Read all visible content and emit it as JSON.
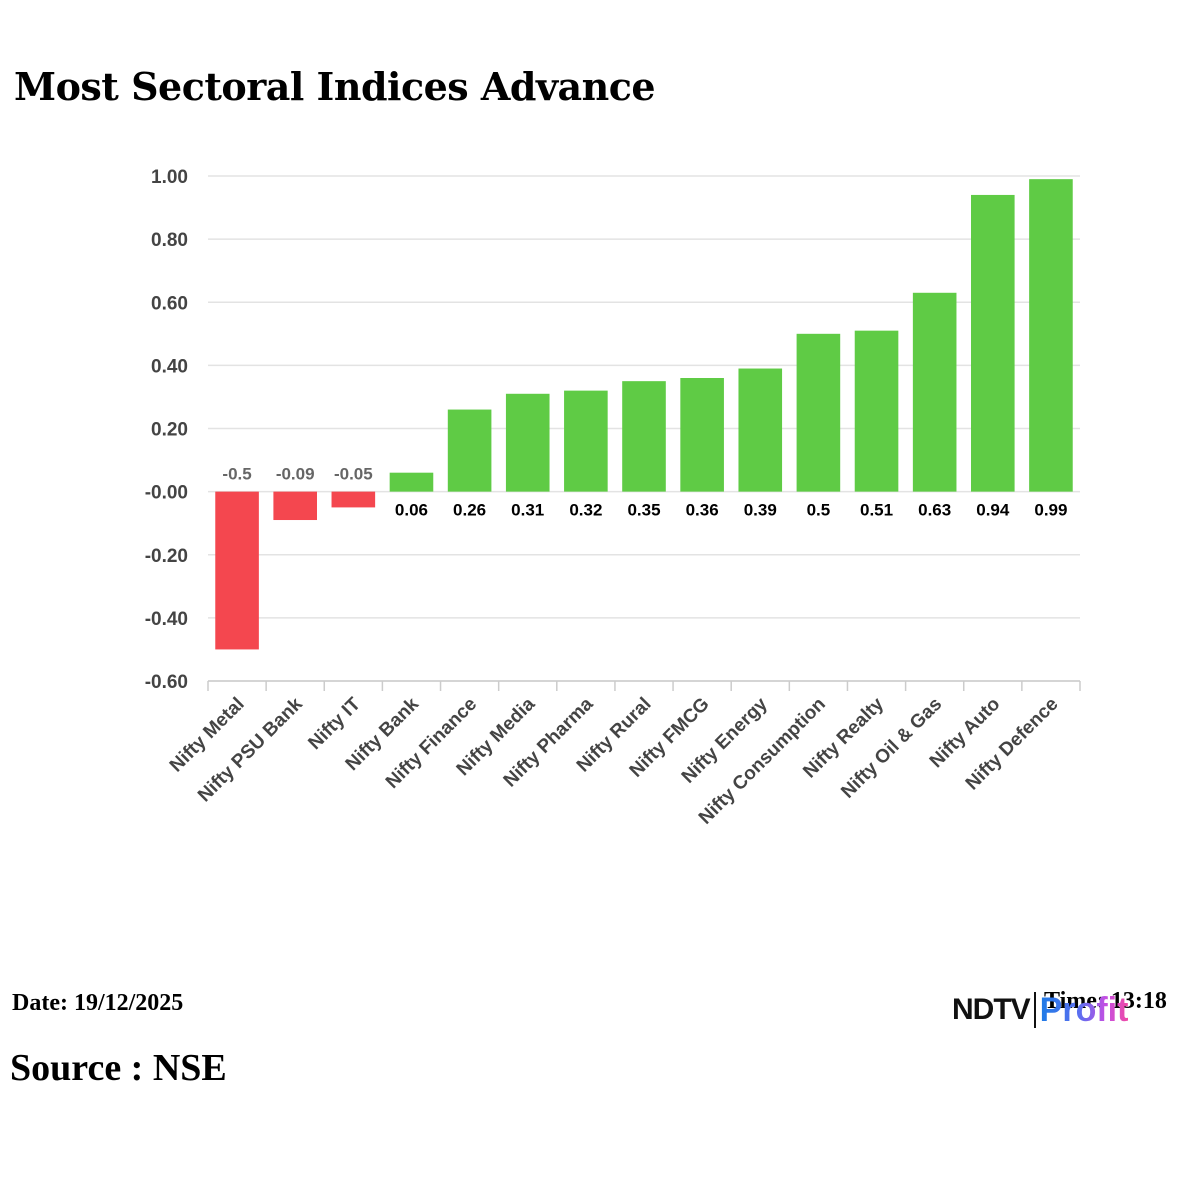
{
  "title": "Most Sectoral Indices Advance",
  "footer": {
    "date": "Date: 19/12/2025",
    "source": "Source : NSE",
    "time": "Time: 13:18"
  },
  "logo": {
    "text_primary": "NDTV",
    "text_secondary": "Profit"
  },
  "colors": {
    "positive": "#5fcb45",
    "negative": "#f4474f",
    "positive_label": "#000000",
    "negative_label": "#666666",
    "grid": "#e3e3e3",
    "axis": "#cccccc"
  },
  "chart_data": {
    "type": "bar",
    "title": "Most Sectoral Indices Advance",
    "xlabel": "",
    "ylabel": "",
    "categories": [
      "Nifty Metal",
      "Nifty PSU Bank",
      "Nifty IT",
      "Nifty Bank",
      "Nifty Finance",
      "Nifty Media",
      "Nifty Pharma",
      "Nifty Rural",
      "Nifty FMCG",
      "Nifty Energy",
      "Nifty Consumption",
      "Nifty Realty",
      "Nifty Oil & Gas",
      "Nifty Auto",
      "Nifty Defence"
    ],
    "values": [
      -0.5,
      -0.09,
      -0.05,
      0.06,
      0.26,
      0.31,
      0.32,
      0.35,
      0.36,
      0.39,
      0.5,
      0.51,
      0.63,
      0.94,
      0.99
    ],
    "data_labels": [
      "-0.5",
      "-0.09",
      "-0.05",
      "0.06",
      "0.26",
      "0.31",
      "0.32",
      "0.35",
      "0.36",
      "0.39",
      "0.5",
      "0.51",
      "0.63",
      "0.94",
      "0.99"
    ],
    "ylim": [
      -0.6,
      1.0
    ],
    "yticks": [
      1.0,
      0.8,
      0.6,
      0.4,
      0.2,
      0.0,
      -0.2,
      -0.4,
      -0.6
    ],
    "ytick_labels": [
      "1.00",
      "0.80",
      "0.60",
      "0.40",
      "0.20",
      "-0.00",
      "-0.20",
      "-0.40",
      "-0.60"
    ],
    "grid": true,
    "legend": "none"
  }
}
